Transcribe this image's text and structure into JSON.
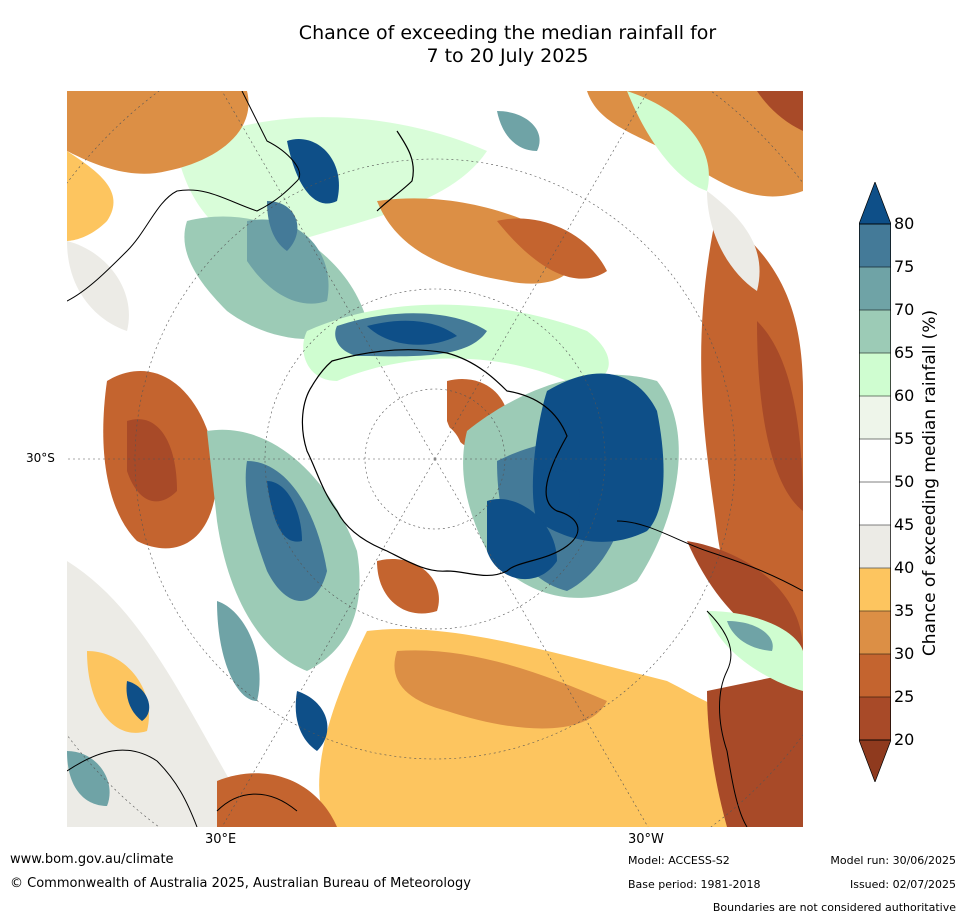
{
  "title_line1": "Chance of exceeding the median rainfall for",
  "title_line2": "7 to 20 July 2025",
  "map": {
    "lat_label": "30°S",
    "lon_labels": [
      "30°E",
      "30°W"
    ],
    "palette": {
      "dark_brown": "#8f3a1e",
      "brown": "#a84a28",
      "orange_brown": "#c4642f",
      "orange": "#dc8f45",
      "light_orange": "#fdc55f",
      "grey": "#ecebe6",
      "white": "#ffffff",
      "light_green": "#cffdd0",
      "mint": "#9ccbb6",
      "teal": "#6fa3a6",
      "steel_blue": "#447a98",
      "dark_blue": "#0e4f88"
    }
  },
  "colorbar": {
    "title": "Chance of exceeding median rainfall (%)",
    "ticks": [
      "20",
      "25",
      "30",
      "35",
      "40",
      "45",
      "50",
      "55",
      "60",
      "65",
      "70",
      "75",
      "80"
    ],
    "colors": [
      "#a84a28",
      "#c4642f",
      "#dc8f45",
      "#fdc55f",
      "#ecebe6",
      "#ffffff",
      "#ffffff",
      "#eef5ea",
      "#cffdd0",
      "#9ccbb6",
      "#6fa3a6",
      "#447a98"
    ],
    "under_color": "#8f3a1e",
    "over_color": "#0e4f88"
  },
  "footer": {
    "website": "www.bom.gov.au/climate",
    "copyright": "© Commonwealth of Australia 2025, Australian Bureau of Meteorology",
    "model": "Model: ACCESS-S2",
    "base_period": "Base period: 1981-2018",
    "model_run": "Model run: 30/06/2025",
    "issued": "Issued: 02/07/2025",
    "disclaimer": "Boundaries are not considered authoritative"
  }
}
